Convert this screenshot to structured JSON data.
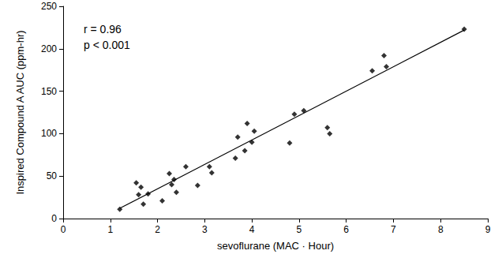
{
  "chart_data": {
    "type": "scatter",
    "xlabel": "sevoflurane (MAC · Hour)",
    "ylabel": "Inspired Compound A AUC (ppm-hr)",
    "annotations": [
      "r = 0.96",
      "p < 0.001"
    ],
    "xlim": [
      0,
      9
    ],
    "xticks": [
      0,
      1,
      2,
      3,
      4,
      5,
      6,
      7,
      8,
      9
    ],
    "ylim": [
      0,
      250
    ],
    "yticks": [
      0,
      50,
      100,
      150,
      200,
      250
    ],
    "grid": false,
    "series": [
      {
        "type": "scatter",
        "marker": "diamond",
        "color": "#000000",
        "x": [
          1.2,
          1.55,
          1.6,
          1.65,
          1.7,
          1.8,
          2.1,
          2.25,
          2.3,
          2.35,
          2.4,
          2.6,
          2.85,
          3.1,
          3.15,
          3.65,
          3.7,
          3.85,
          3.9,
          4.0,
          4.05,
          4.8,
          4.9,
          5.1,
          5.6,
          5.65,
          6.55,
          6.8,
          6.85,
          8.5
        ],
        "values": [
          11,
          42,
          28,
          37,
          17,
          29,
          21,
          53,
          40,
          46,
          31,
          61,
          39,
          61,
          54,
          71,
          96,
          80,
          112,
          90,
          103,
          89,
          123,
          127,
          107,
          100,
          174,
          192,
          179,
          223
        ]
      },
      {
        "type": "line",
        "line_style": "solid",
        "color": "#000000",
        "x": [
          1.2,
          8.5
        ],
        "values": [
          12,
          222
        ]
      }
    ]
  }
}
